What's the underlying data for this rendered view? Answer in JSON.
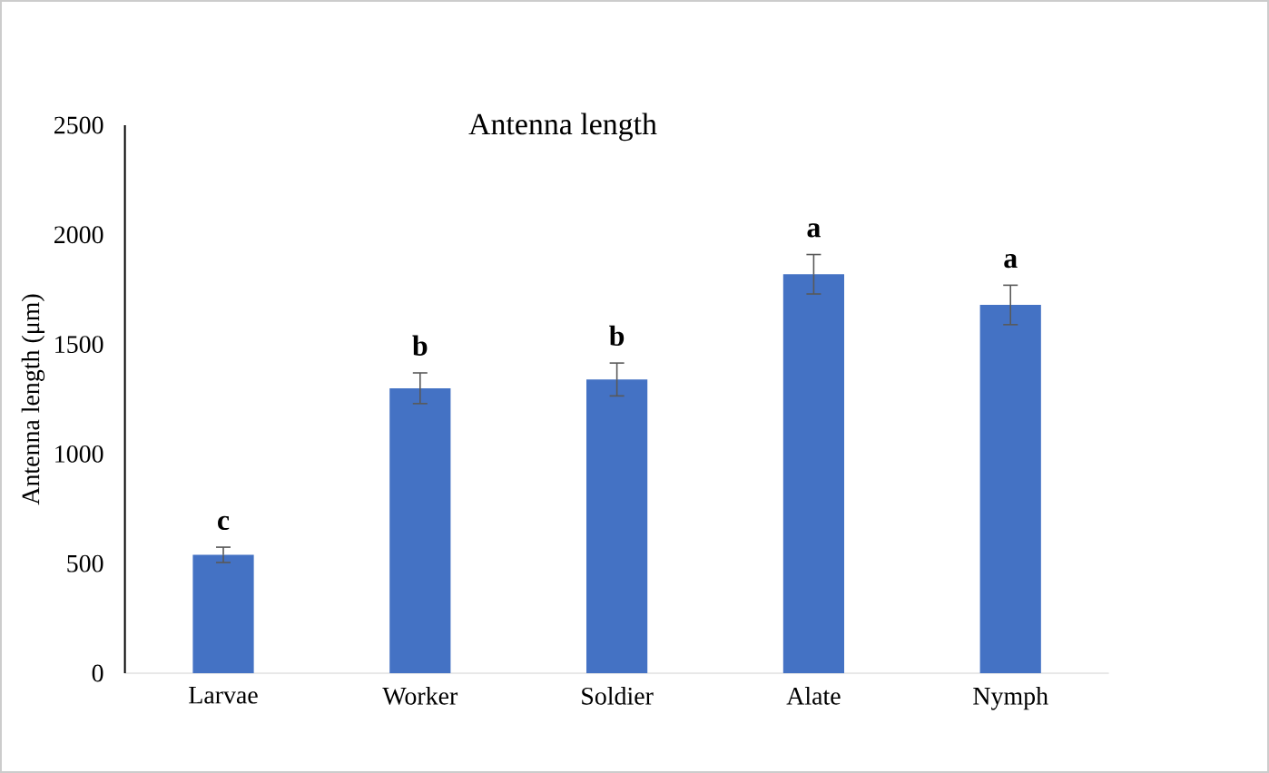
{
  "chart_data": {
    "type": "bar",
    "title": "Antenna   length",
    "ylabel": "Antenna  length  (μm)",
    "categories": [
      "Larvae",
      "Worker",
      "Soldier",
      "Alate",
      "Nymph"
    ],
    "values": [
      540,
      1300,
      1340,
      1820,
      1680
    ],
    "errors": [
      35,
      70,
      75,
      90,
      90
    ],
    "color": "#4472c4",
    "ylim": [
      0,
      2500
    ],
    "yticks": [
      0,
      500,
      1000,
      1500,
      2000,
      2500
    ],
    "annotations": [
      {
        "text": "c",
        "x": "Larvae",
        "y": 575
      },
      {
        "text": "b",
        "x": "Worker",
        "y": 1370
      },
      {
        "text": "b",
        "x": "Soldier",
        "y": 1415
      },
      {
        "text": "a",
        "x": "Alate",
        "y": 1910
      },
      {
        "text": "a",
        "x": "Nymph",
        "y": 1770
      }
    ]
  }
}
